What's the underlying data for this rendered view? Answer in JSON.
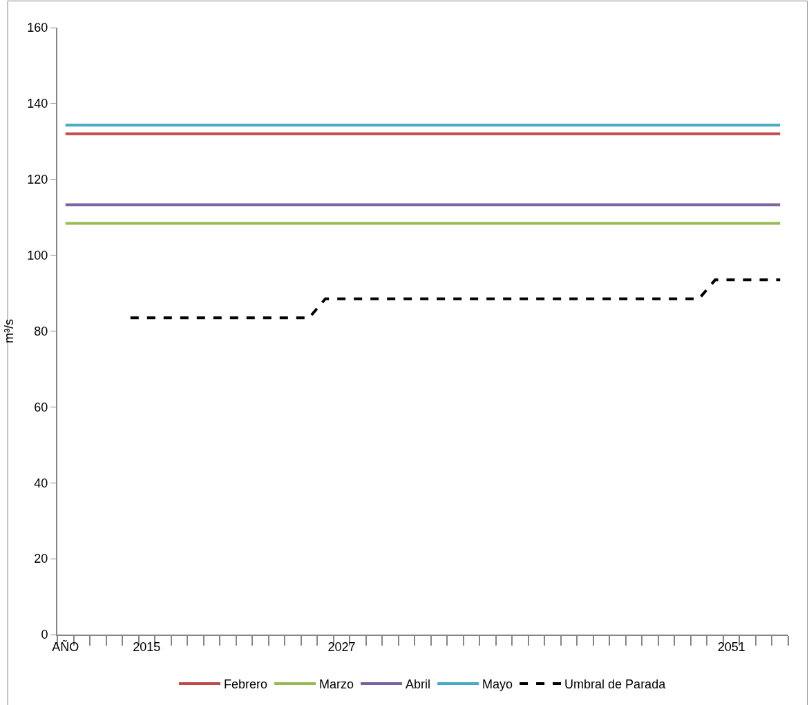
{
  "chart_data": {
    "type": "line",
    "ylabel": "m³/s",
    "categories": [
      "AÑO",
      null,
      null,
      null,
      null,
      "2015",
      null,
      null,
      null,
      null,
      null,
      null,
      null,
      null,
      null,
      null,
      null,
      "2027",
      null,
      null,
      null,
      null,
      null,
      null,
      null,
      null,
      null,
      null,
      null,
      null,
      null,
      null,
      null,
      null,
      null,
      null,
      null,
      null,
      null,
      null,
      null,
      "2051",
      null,
      null,
      null
    ],
    "ylim": [
      0,
      160
    ],
    "yticks": [
      0,
      20,
      40,
      60,
      80,
      100,
      120,
      140,
      160
    ],
    "legend": "bottom",
    "marker": "none",
    "series": [
      {
        "name": "Febrero",
        "color": "#be4b48",
        "values": [
          132,
          132,
          132,
          132,
          132,
          132,
          132,
          132,
          132,
          132,
          132,
          132,
          132,
          132,
          132,
          132,
          132,
          132,
          132,
          132,
          132,
          132,
          132,
          132,
          132,
          132,
          132,
          132,
          132,
          132,
          132,
          132,
          132,
          132,
          132,
          132,
          132,
          132,
          132,
          132,
          132,
          132,
          132,
          132,
          132
        ]
      },
      {
        "name": "Marzo",
        "color": "#98b954",
        "values": [
          108.4,
          108.4,
          108.4,
          108.4,
          108.4,
          108.4,
          108.4,
          108.4,
          108.4,
          108.4,
          108.4,
          108.4,
          108.4,
          108.4,
          108.4,
          108.4,
          108.4,
          108.4,
          108.4,
          108.4,
          108.4,
          108.4,
          108.4,
          108.4,
          108.4,
          108.4,
          108.4,
          108.4,
          108.4,
          108.4,
          108.4,
          108.4,
          108.4,
          108.4,
          108.4,
          108.4,
          108.4,
          108.4,
          108.4,
          108.4,
          108.4,
          108.4,
          108.4,
          108.4,
          108.4
        ]
      },
      {
        "name": "Abril",
        "color": "#7d60a0",
        "values": [
          113.3,
          113.3,
          113.3,
          113.3,
          113.3,
          113.3,
          113.3,
          113.3,
          113.3,
          113.3,
          113.3,
          113.3,
          113.3,
          113.3,
          113.3,
          113.3,
          113.3,
          113.3,
          113.3,
          113.3,
          113.3,
          113.3,
          113.3,
          113.3,
          113.3,
          113.3,
          113.3,
          113.3,
          113.3,
          113.3,
          113.3,
          113.3,
          113.3,
          113.3,
          113.3,
          113.3,
          113.3,
          113.3,
          113.3,
          113.3,
          113.3,
          113.3,
          113.3,
          113.3,
          113.3
        ]
      },
      {
        "name": "Mayo",
        "color": "#46aac5",
        "values": [
          134.3,
          134.3,
          134.3,
          134.3,
          134.3,
          134.3,
          134.3,
          134.3,
          134.3,
          134.3,
          134.3,
          134.3,
          134.3,
          134.3,
          134.3,
          134.3,
          134.3,
          134.3,
          134.3,
          134.3,
          134.3,
          134.3,
          134.3,
          134.3,
          134.3,
          134.3,
          134.3,
          134.3,
          134.3,
          134.3,
          134.3,
          134.3,
          134.3,
          134.3,
          134.3,
          134.3,
          134.3,
          134.3,
          134.3,
          134.3,
          134.3,
          134.3,
          134.3,
          134.3,
          134.3
        ]
      },
      {
        "name": "Umbral de Parada",
        "color": "#000000",
        "line_style": "dashed",
        "values": [
          null,
          null,
          null,
          null,
          83.5,
          83.5,
          83.5,
          83.5,
          83.5,
          83.5,
          83.5,
          83.5,
          83.5,
          83.5,
          83.5,
          83.5,
          88.5,
          88.5,
          88.5,
          88.5,
          88.5,
          88.5,
          88.5,
          88.5,
          88.5,
          88.5,
          88.5,
          88.5,
          88.5,
          88.5,
          88.5,
          88.5,
          88.5,
          88.5,
          88.5,
          88.5,
          88.5,
          88.5,
          88.5,
          88.5,
          93.5,
          93.5,
          93.5,
          93.5,
          93.5
        ]
      }
    ]
  }
}
